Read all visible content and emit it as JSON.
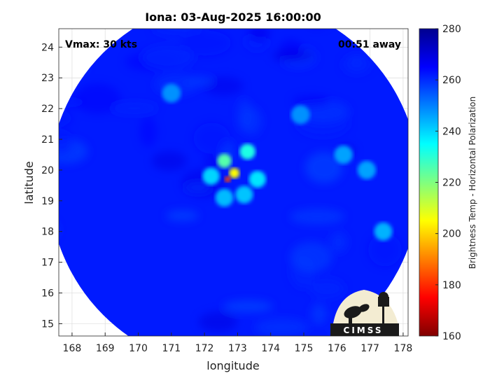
{
  "chart_data": {
    "type": "heatmap",
    "title": "Iona: 03-Aug-2025 16:00:00",
    "xlabel": "longitude",
    "ylabel": "latitude",
    "xlim": [
      167.6,
      178.15
    ],
    "ylim": [
      14.6,
      24.6
    ],
    "xticks": [
      168,
      169,
      170,
      171,
      172,
      173,
      174,
      175,
      176,
      177,
      178
    ],
    "yticks": [
      15,
      16,
      17,
      18,
      19,
      20,
      21,
      22,
      23,
      24
    ],
    "grid": true,
    "annotations": {
      "vmax": "Vmax: 30 kts",
      "away": "00:51 away"
    },
    "colorbar": {
      "label": "Brightness Temp - Horizontal Polarization",
      "range": [
        160,
        280
      ],
      "ticks": [
        160,
        180,
        200,
        220,
        240,
        260,
        280
      ],
      "colormap": "jet"
    },
    "field": {
      "center": [
        172.9,
        19.55
      ],
      "radius_deg_lon": 5.6,
      "background_value": 262,
      "features": [
        {
          "lon": 172.7,
          "lat": 19.7,
          "value": 183
        },
        {
          "lon": 172.9,
          "lat": 19.9,
          "value": 205
        },
        {
          "lon": 172.6,
          "lat": 20.3,
          "value": 225
        },
        {
          "lon": 173.3,
          "lat": 20.6,
          "value": 232
        },
        {
          "lon": 173.6,
          "lat": 19.7,
          "value": 238
        },
        {
          "lon": 172.2,
          "lat": 19.8,
          "value": 240
        },
        {
          "lon": 173.2,
          "lat": 19.2,
          "value": 242
        },
        {
          "lon": 172.6,
          "lat": 19.1,
          "value": 243
        },
        {
          "lon": 176.2,
          "lat": 20.5,
          "value": 246
        },
        {
          "lon": 176.9,
          "lat": 20.0,
          "value": 246
        },
        {
          "lon": 177.4,
          "lat": 18.0,
          "value": 244
        },
        {
          "lon": 171.0,
          "lat": 22.5,
          "value": 248
        },
        {
          "lon": 174.9,
          "lat": 21.8,
          "value": 248
        }
      ]
    }
  },
  "logo": {
    "text": "CIMSS"
  }
}
